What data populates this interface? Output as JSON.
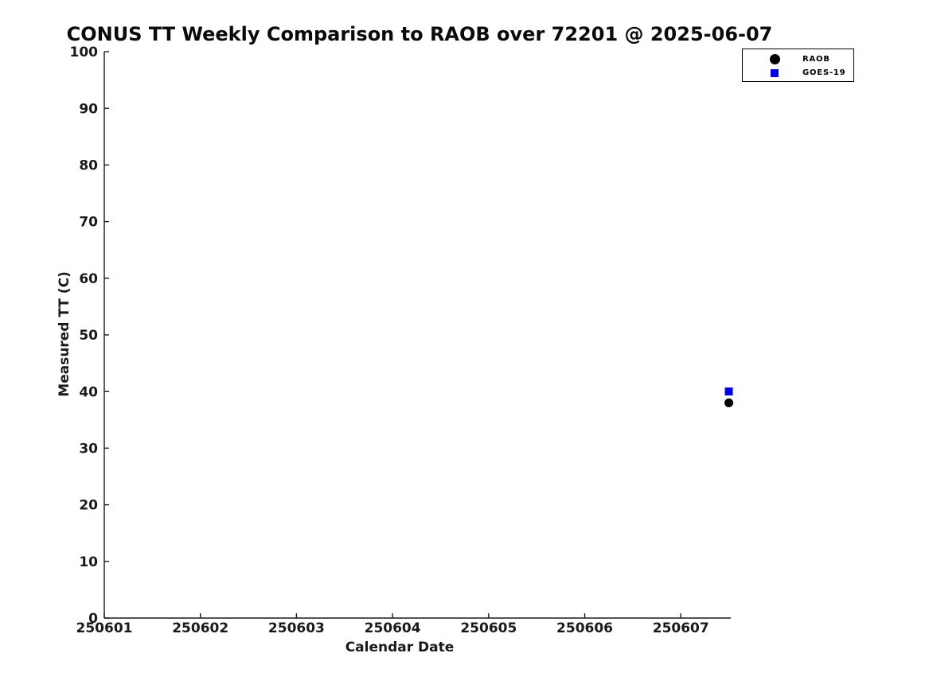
{
  "chart_data": {
    "type": "scatter",
    "title": "CONUS TT Weekly Comparison to RAOB over 72201 @ 2025-06-07",
    "xlabel": "Calendar Date",
    "ylabel": "Measured TT (C)",
    "xlim": [
      250601,
      250607.52
    ],
    "ylim": [
      0,
      100
    ],
    "x_ticks": [
      250601,
      250602,
      250603,
      250604,
      250605,
      250606,
      250607
    ],
    "x_tick_labels": [
      "250601",
      "250602",
      "250603",
      "250604",
      "250605",
      "250606",
      "250607"
    ],
    "y_ticks": [
      0,
      10,
      20,
      30,
      40,
      50,
      60,
      70,
      80,
      90,
      100
    ],
    "y_tick_labels": [
      "0",
      "10",
      "20",
      "30",
      "40",
      "50",
      "60",
      "70",
      "80",
      "90",
      "100"
    ],
    "grid": false,
    "legend_position": "top-right",
    "axis_color": "#1a1a1a",
    "background_color": "#ffffff",
    "series": [
      {
        "name": "RAOB",
        "marker": "circle",
        "color": "#000000",
        "points": [
          {
            "x": 250607.5,
            "y": 38
          }
        ]
      },
      {
        "name": "GOES-19",
        "marker": "square",
        "color": "#0000ee",
        "points": [
          {
            "x": 250607.5,
            "y": 40
          }
        ]
      }
    ]
  }
}
